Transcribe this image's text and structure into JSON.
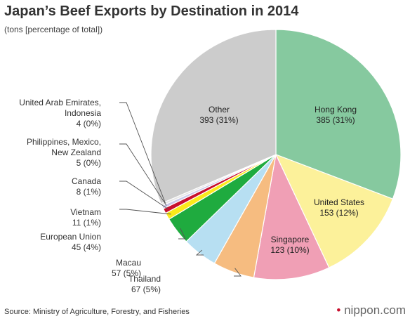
{
  "chart_data": {
    "type": "pie",
    "title": "Japan’s Beef Exports by Destination in 2014",
    "subtitle": "(tons [percentage of total])",
    "source": "Source: Ministry of Agriculture, Forestry, and Fisheries",
    "brand": {
      "name": "nippon",
      "suffix": ".com",
      "dot_color": "#c8102e"
    },
    "slices": [
      {
        "name": "Hong Kong",
        "value": 385,
        "label": "385 (31%)",
        "color": "#86c99f"
      },
      {
        "name": "United States",
        "value": 153,
        "label": "153 (12%)",
        "color": "#fcf19a"
      },
      {
        "name": "Singapore",
        "value": 123,
        "label": "123 (10%)",
        "color": "#f09fb5"
      },
      {
        "name": "Thailand",
        "value": 67,
        "label": "67 (5%)",
        "color": "#f6bc80"
      },
      {
        "name": "Macau",
        "value": 57,
        "label": "57 (5%)",
        "color": "#b7dff2"
      },
      {
        "name": "European Union",
        "value": 45,
        "label": "45 (4%)",
        "color": "#1fab3f"
      },
      {
        "name": "Vietnam",
        "value": 11,
        "label": "11 (1%)",
        "color": "#fbea1b"
      },
      {
        "name": "Canada",
        "value": 8,
        "label": "8 (1%)",
        "color": "#c8102e"
      },
      {
        "name": "Philippines, Mexico, New Zealand",
        "value": 5,
        "label": "5 (0%)",
        "color": "#c9c9ea"
      },
      {
        "name": "United Arab Emirates, Indonesia",
        "value": 4,
        "label": "4 (0%)",
        "color": "#e6e6e6"
      },
      {
        "name": "Other",
        "value": 393,
        "label": "393 (31%)",
        "color": "#cccccc"
      }
    ],
    "label_lines": {
      "Hong Kong": [
        "Hong Kong"
      ],
      "United States": [
        "United States"
      ],
      "Singapore": [
        "Singapore"
      ],
      "Thailand": [
        "Thailand"
      ],
      "Macau": [
        "Macau"
      ],
      "European Union": [
        "European Union"
      ],
      "Vietnam": [
        "Vietnam"
      ],
      "Canada": [
        "Canada"
      ],
      "Philippines, Mexico, New Zealand": [
        "Philippines, Mexico,",
        "New Zealand"
      ],
      "United Arab Emirates, Indonesia": [
        "United Arab Emirates,",
        "Indonesia"
      ],
      "Other": [
        "Other"
      ]
    }
  }
}
